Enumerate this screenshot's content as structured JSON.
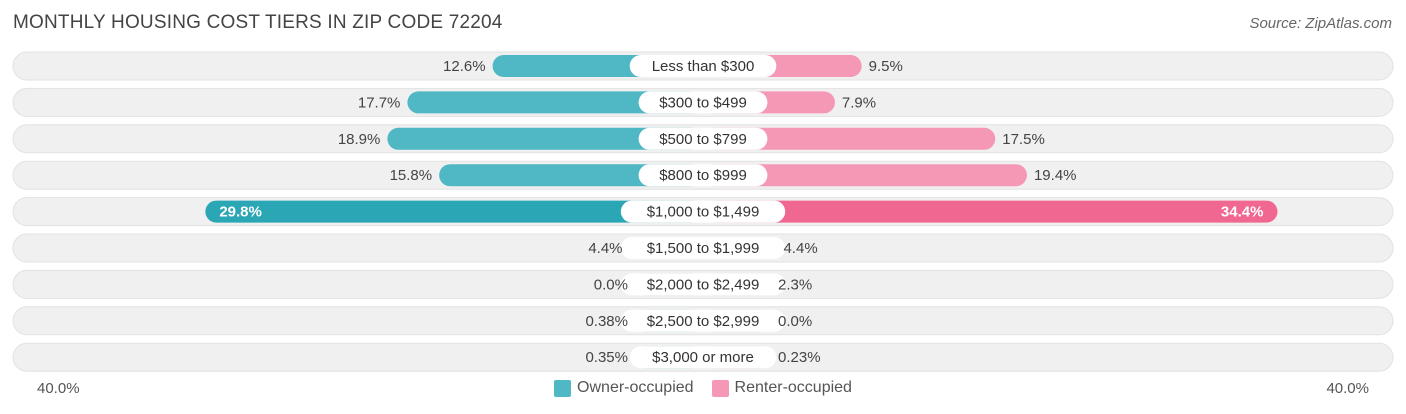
{
  "header": {
    "title": "MONTHLY HOUSING COST TIERS IN ZIP CODE 72204",
    "source": "Source: ZipAtlas.com"
  },
  "axis": {
    "left_label": "40.0%",
    "right_label": "40.0%"
  },
  "legend": {
    "owner_label": "Owner-occupied",
    "renter_label": "Renter-occupied"
  },
  "colors": {
    "owner": "#4fb8c4",
    "owner_dark": "#2aa6b5",
    "owner_light": "#88cdd6",
    "renter": "#f598b6",
    "renter_dark": "#f06891",
    "renter_light": "#f8b6cb",
    "row_bg": "#f0f0f0"
  },
  "chart_data": {
    "type": "bar",
    "orientation": "horizontal-diverging",
    "title": "MONTHLY HOUSING COST TIERS IN ZIP CODE 72204",
    "xlim": [
      -40,
      40
    ],
    "categories": [
      "Less than $300",
      "$300 to $499",
      "$500 to $799",
      "$800 to $999",
      "$1,000 to $1,499",
      "$1,500 to $1,999",
      "$2,000 to $2,499",
      "$2,500 to $2,999",
      "$3,000 or more"
    ],
    "series": [
      {
        "name": "Owner-occupied",
        "values": [
          12.6,
          17.7,
          18.9,
          15.8,
          29.8,
          4.4,
          0.0,
          0.38,
          0.35
        ],
        "labels": [
          "12.6%",
          "17.7%",
          "18.9%",
          "15.8%",
          "29.8%",
          "4.4%",
          "0.0%",
          "0.38%",
          "0.35%"
        ]
      },
      {
        "name": "Renter-occupied",
        "values": [
          9.5,
          7.9,
          17.5,
          19.4,
          34.4,
          4.4,
          2.3,
          0.0,
          0.23
        ],
        "labels": [
          "9.5%",
          "7.9%",
          "17.5%",
          "19.4%",
          "34.4%",
          "4.4%",
          "2.3%",
          "0.0%",
          "0.23%"
        ]
      }
    ],
    "legend_position": "bottom-center",
    "grid": false
  }
}
